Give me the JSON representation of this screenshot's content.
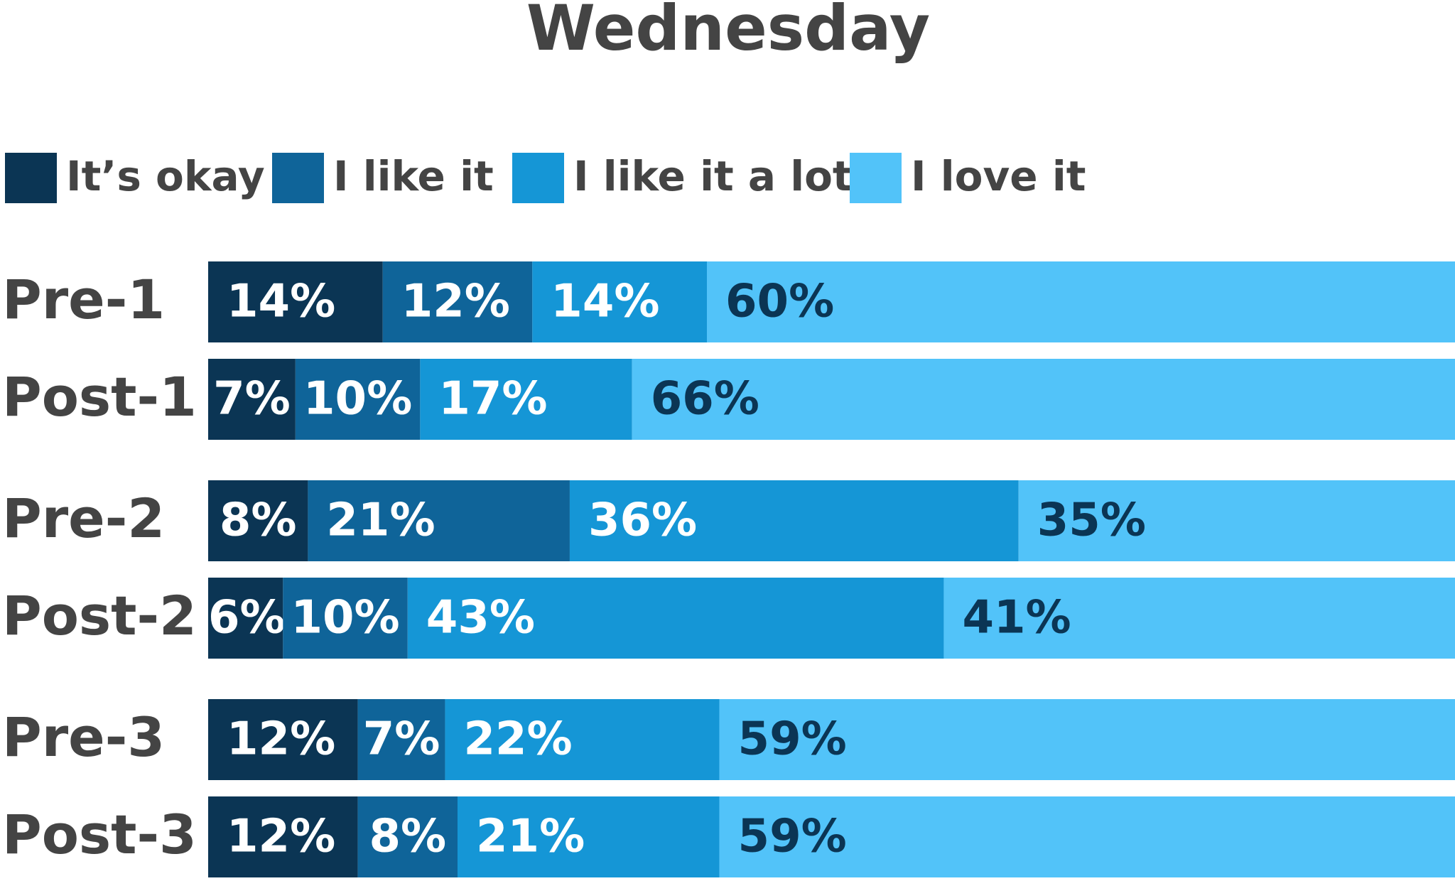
{
  "chart_data": {
    "type": "stacked-bar-horizontal",
    "title": "Wednesday",
    "categories": [
      "Pre-1",
      "Post-1",
      "Pre-2",
      "Post-2",
      "Pre-3",
      "Post-3"
    ],
    "series": [
      {
        "name": "It’s okay",
        "color": "#0b3554",
        "label_color": "#ffffff",
        "values": [
          14,
          7,
          8,
          6,
          12,
          12
        ],
        "value_labels": [
          "14%",
          "7%",
          "8%",
          "6%",
          "12%",
          "12%"
        ]
      },
      {
        "name": "I like it",
        "color": "#0f6499",
        "label_color": "#ffffff",
        "values": [
          12,
          10,
          21,
          10,
          7,
          8
        ],
        "value_labels": [
          "12%",
          "10%",
          "21%",
          "10%",
          "7%",
          "8%"
        ]
      },
      {
        "name": "I like it a lot",
        "color": "#1596d6",
        "label_color": "#ffffff",
        "values": [
          14,
          17,
          36,
          43,
          22,
          21
        ],
        "value_labels": [
          "14%",
          "17%",
          "36%",
          "43%",
          "22%",
          "21%"
        ]
      },
      {
        "name": "I love it",
        "color": "#52c3f9",
        "label_color": "#0b3554",
        "values": [
          60,
          66,
          35,
          41,
          59,
          59
        ],
        "value_labels": [
          "60%",
          "66%",
          "35%",
          "41%",
          "59%",
          "59%"
        ]
      }
    ]
  }
}
